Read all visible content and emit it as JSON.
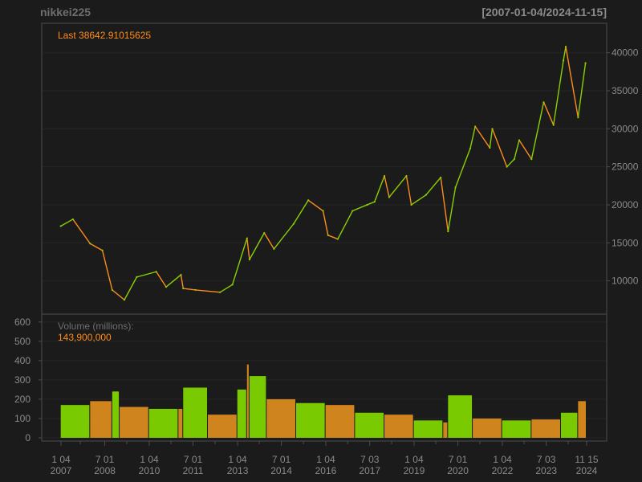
{
  "header": {
    "symbol": "nikkei225",
    "date_range": "[2007-01-04/2024-11-15]"
  },
  "colors": {
    "background": "#1b1b1b",
    "panel_border": "#4d4d4d",
    "grid": "#262626",
    "axis_text": "#8a8a8a",
    "title_text": "#6e6e6e",
    "accent": "#ff8c1a",
    "up": "#8ad000",
    "down": "#ff8c1a",
    "volume_up": "#7fd400",
    "volume_down": "#d98a1f"
  },
  "price_panel": {
    "last_label": "Last 38642.91015625"
  },
  "volume_panel": {
    "label": "Volume (millions):",
    "value": "143,900,000"
  },
  "chart_data": [
    {
      "type": "line",
      "title": "nikkei225",
      "subtitle": "[2007-01-04/2024-11-15]",
      "x": [
        "2007-01",
        "2007-06",
        "2008-01",
        "2008-06",
        "2008-10",
        "2009-03",
        "2009-08",
        "2010-04",
        "2010-08",
        "2011-02",
        "2011-03",
        "2011-08",
        "2012-06",
        "2012-11",
        "2013-05",
        "2013-06",
        "2013-12",
        "2014-04",
        "2014-12",
        "2015-06",
        "2015-12",
        "2016-02",
        "2016-06",
        "2016-12",
        "2017-06",
        "2017-09",
        "2018-01",
        "2018-03",
        "2018-10",
        "2018-12",
        "2019-06",
        "2019-12",
        "2020-03",
        "2020-06",
        "2020-12",
        "2021-02",
        "2021-08",
        "2021-09",
        "2022-03",
        "2022-06",
        "2022-08",
        "2023-01",
        "2023-06",
        "2023-10",
        "2024-02",
        "2024-03",
        "2024-08",
        "2024-11"
      ],
      "y": [
        17200,
        18100,
        14900,
        14000,
        8800,
        7500,
        10500,
        11200,
        9200,
        10800,
        9000,
        8800,
        8500,
        9500,
        15600,
        12800,
        16300,
        14200,
        17500,
        20600,
        19200,
        16000,
        15500,
        19200,
        20000,
        20400,
        23800,
        21000,
        23800,
        20000,
        21300,
        23600,
        16500,
        22300,
        27400,
        30300,
        27500,
        30000,
        25000,
        26000,
        28500,
        26000,
        33500,
        30500,
        39000,
        40800,
        31500,
        38642
      ],
      "ylim": [
        7000,
        42500
      ],
      "yticks": [
        10000,
        15000,
        20000,
        25000,
        30000,
        35000,
        40000
      ],
      "ytick_labels": [
        "10000",
        "15000",
        "20000",
        "25000",
        "30000",
        "35000",
        "40000"
      ],
      "grid": true
    },
    {
      "type": "bar",
      "x": [
        "2007",
        "2008",
        "2008-10",
        "2009",
        "2010",
        "2011",
        "2011-03",
        "2012",
        "2013",
        "2013-05",
        "2013-06",
        "2014",
        "2015",
        "2016",
        "2017",
        "2018",
        "2019",
        "2020",
        "2020-03",
        "2021",
        "2022",
        "2023",
        "2024",
        "2024-08"
      ],
      "values": [
        170,
        190,
        240,
        160,
        150,
        150,
        260,
        120,
        250,
        380,
        320,
        200,
        180,
        170,
        130,
        120,
        90,
        80,
        220,
        100,
        90,
        95,
        130,
        190
      ],
      "ylim": [
        0,
        620
      ],
      "yticks": [
        0,
        100,
        200,
        300,
        400,
        500,
        600
      ],
      "ytick_labels": [
        "0",
        "100",
        "200",
        "300",
        "400",
        "500",
        "600"
      ]
    }
  ],
  "x_axis": {
    "ticks": [
      {
        "date": "2007-01-04",
        "top": "1 04",
        "bottom": "2007"
      },
      {
        "date": "2008-07-01",
        "top": "7 01",
        "bottom": "2008"
      },
      {
        "date": "2010-01-04",
        "top": "1 04",
        "bottom": "2010"
      },
      {
        "date": "2011-07-01",
        "top": "7 01",
        "bottom": "2011"
      },
      {
        "date": "2013-01-04",
        "top": "1 04",
        "bottom": "2013"
      },
      {
        "date": "2014-07-01",
        "top": "7 01",
        "bottom": "2014"
      },
      {
        "date": "2016-01-04",
        "top": "1 04",
        "bottom": "2016"
      },
      {
        "date": "2017-07-03",
        "top": "7 03",
        "bottom": "2017"
      },
      {
        "date": "2019-01-04",
        "top": "1 04",
        "bottom": "2019"
      },
      {
        "date": "2020-07-01",
        "top": "7 01",
        "bottom": "2020"
      },
      {
        "date": "2022-01-04",
        "top": "1 04",
        "bottom": "2022"
      },
      {
        "date": "2023-07-03",
        "top": "7 03",
        "bottom": "2023"
      },
      {
        "date": "2024-11-15",
        "top": "11 15",
        "bottom": "2024"
      }
    ],
    "minor_ticks": [
      "2007-09-01",
      "2009-04-01",
      "2010-10-01",
      "2012-04-01",
      "2013-10-01",
      "2015-04-01",
      "2016-10-01",
      "2018-04-01",
      "2019-10-01",
      "2021-04-01",
      "2022-10-01",
      "2024-04-01"
    ]
  }
}
